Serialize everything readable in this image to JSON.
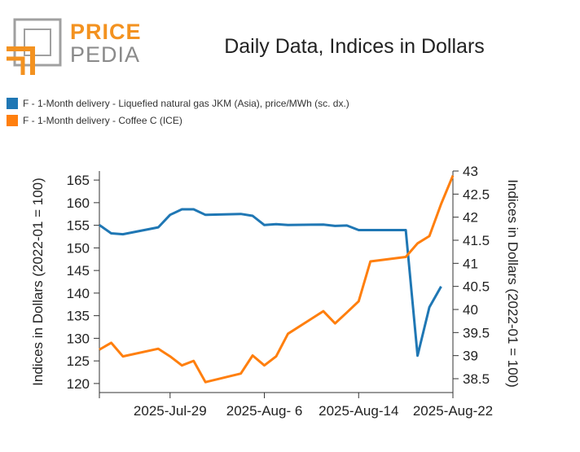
{
  "brand": {
    "word1": "PRICE",
    "word2": "PEDIA",
    "colors": {
      "orange": "#f39220",
      "gray": "#a0a0a0"
    }
  },
  "chart_data": {
    "type": "line",
    "title": "Daily Data, Indices in Dollars",
    "xlabel": "",
    "ylabel": "Indices in Dollars (2022-01 = 100)",
    "y2label": "Indices in Dollars (2022-01 = 100)",
    "x_ticks": [
      "2025-Jul-29",
      "2025-Aug- 6",
      "2025-Aug-14",
      "2025-Aug-22"
    ],
    "x": [
      "2025-07-23",
      "2025-07-24",
      "2025-07-25",
      "2025-07-28",
      "2025-07-29",
      "2025-07-30",
      "2025-07-31",
      "2025-08-01",
      "2025-08-04",
      "2025-08-05",
      "2025-08-06",
      "2025-08-07",
      "2025-08-08",
      "2025-08-11",
      "2025-08-12",
      "2025-08-13",
      "2025-08-14",
      "2025-08-15",
      "2025-08-18",
      "2025-08-19",
      "2025-08-20",
      "2025-08-21",
      "2025-08-22"
    ],
    "ylim": [
      118,
      167
    ],
    "y_ticks": [
      120,
      125,
      130,
      135,
      140,
      145,
      150,
      155,
      160,
      165
    ],
    "y2lim": [
      38.2,
      43.0
    ],
    "y2_ticks": [
      38.5,
      39,
      39.5,
      40,
      40.5,
      41,
      41.5,
      42,
      42.5,
      43
    ],
    "grid": false,
    "legend_position": "top-left",
    "series": [
      {
        "name": "F - 1-Month delivery - Liquefied natural gas JKM (Asia), price/MWh (sc. dx.)",
        "axis": "right",
        "color": "#1f77b4",
        "values": [
          41.83,
          41.65,
          41.63,
          41.78,
          42.05,
          42.17,
          42.17,
          42.05,
          42.07,
          42.03,
          41.83,
          41.85,
          41.83,
          41.84,
          41.81,
          41.82,
          41.72,
          41.72,
          41.72,
          39.0,
          40.05,
          40.5,
          null
        ]
      },
      {
        "name": "F - 1-Month delivery - Coffee C (ICE)",
        "axis": "left",
        "color": "#ff7f0e",
        "values": [
          127.5,
          129.0,
          126.0,
          127.7,
          126.0,
          124.0,
          125.0,
          120.3,
          122.2,
          126.2,
          124.0,
          126.0,
          131.0,
          136.0,
          133.3,
          135.7,
          138.2,
          147.0,
          148.0,
          151.0,
          152.6,
          159.7,
          166.0
        ]
      }
    ]
  }
}
